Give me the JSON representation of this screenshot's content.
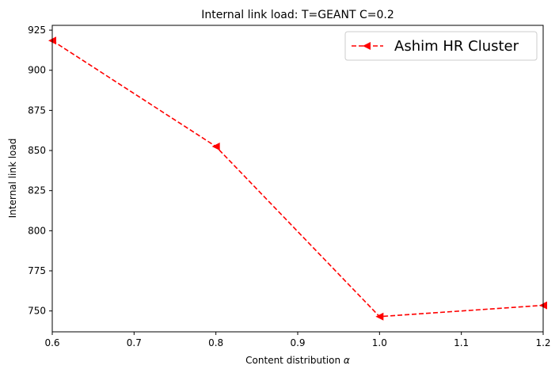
{
  "chart_data": {
    "type": "line",
    "title": "Internal link load: T=GEANT C=0.2",
    "xlabel": "Content distribution",
    "xlabel_symbol": "α",
    "ylabel": "Internal link load",
    "xlim": [
      0.6,
      1.2
    ],
    "ylim": [
      737,
      928
    ],
    "xticks": [
      "0.6",
      "0.7",
      "0.8",
      "0.9",
      "1.0",
      "1.1",
      "1.2"
    ],
    "yticks": [
      "750",
      "775",
      "800",
      "825",
      "850",
      "875",
      "900",
      "925"
    ],
    "grid": false,
    "legend_position": "top-right",
    "series": [
      {
        "name": "Ashim HR Cluster",
        "color": "#ff0000",
        "line_style": "dashed",
        "marker": "left-triangle",
        "x": [
          0.6,
          0.8,
          1.0,
          1.2
        ],
        "y": [
          918.5,
          852.5,
          746.5,
          753.5
        ]
      }
    ]
  }
}
